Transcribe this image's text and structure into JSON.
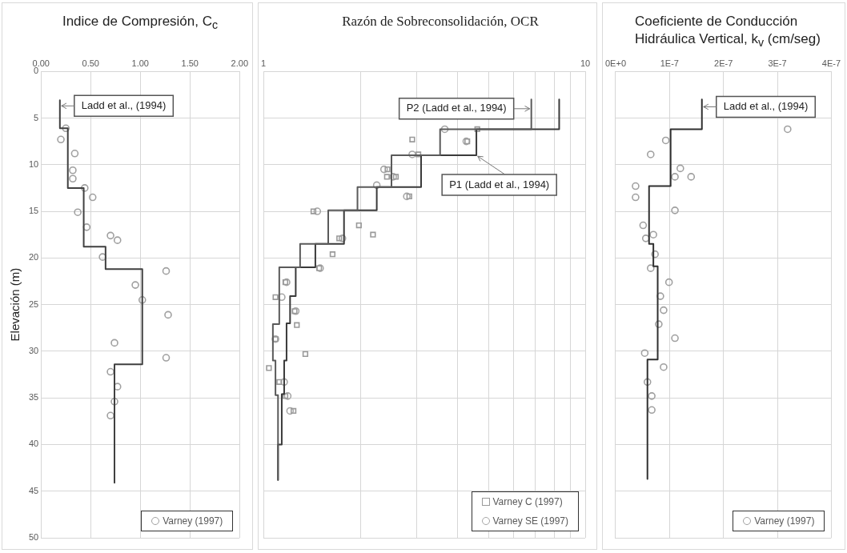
{
  "chart_data": [
    {
      "type": "line",
      "title": "Indice de Compresión, C$_{c}$",
      "ylabel": "Elevación (m)",
      "xlim": [
        0,
        2
      ],
      "xticks": [
        {
          "value": 0,
          "label": "0.00"
        },
        {
          "value": 0.5,
          "label": "0.50"
        },
        {
          "value": 1,
          "label": "1.00"
        },
        {
          "value": 1.5,
          "label": "1.50"
        },
        {
          "value": 2,
          "label": "2.00"
        }
      ],
      "ylim": [
        50,
        0
      ],
      "yticks": [
        0,
        5,
        10,
        15,
        20,
        25,
        30,
        35,
        40,
        45,
        50
      ],
      "grid": true,
      "legend": "bottom right",
      "series": [
        {
          "type": "line",
          "marker": "none",
          "color": "#404040",
          "x": [
            0.19,
            0.19,
            0.27,
            0.27,
            0.43,
            0.43,
            0.65,
            0.65,
            1.02,
            1.02,
            0.74,
            0.74
          ],
          "values": [
            3.1,
            6.1,
            6.1,
            12.5,
            12.5,
            18.8,
            18.8,
            21.2,
            21.2,
            31.4,
            31.4,
            44.1
          ]
        },
        {
          "type": "scatter",
          "marker": "circle",
          "name": "Varney (1997)",
          "color": "#a0a0a0",
          "x": [
            0.25,
            0.2,
            0.34,
            0.32,
            0.32,
            0.44,
            0.52,
            0.37,
            0.46,
            0.7,
            0.77,
            0.62,
            1.26,
            0.95,
            1.02,
            1.28,
            0.74,
            1.26,
            0.7,
            0.77,
            0.74,
            0.7
          ],
          "values": [
            6.1,
            7.3,
            8.8,
            10.6,
            11.5,
            12.5,
            13.5,
            15.1,
            16.7,
            17.6,
            18.1,
            19.9,
            21.4,
            22.9,
            24.5,
            26.1,
            29.1,
            30.7,
            32.2,
            33.8,
            35.4,
            36.9
          ]
        }
      ],
      "annotations": [
        {
          "text": "Ladd et al., (1994)",
          "x": 0.19,
          "y": 3.7
        }
      ]
    },
    {
      "type": "line",
      "title": "Razón de Sobreconsolidación, OCR",
      "log": "x",
      "xlim": [
        1,
        10
      ],
      "xticks": [
        1,
        {
          "value": 2,
          "label": null
        },
        {
          "value": 3,
          "label": null
        },
        {
          "value": 4,
          "label": null
        },
        {
          "value": 5,
          "label": null
        },
        {
          "value": 6,
          "label": null
        },
        {
          "value": 7,
          "label": null
        },
        {
          "value": 8,
          "label": null
        },
        {
          "value": 9,
          "label": null
        },
        10
      ],
      "ylim": [
        50,
        0
      ],
      "yticks": [
        0,
        5,
        10,
        15,
        20,
        25,
        30,
        35,
        40,
        45,
        50
      ],
      "tick_labels": "x",
      "grid": true,
      "legend": "bottom right",
      "series": [
        {
          "type": "line",
          "marker": "none",
          "color": "#5a5a5a",
          "x": [
            6.8,
            6.8,
            3.54,
            3.54,
            2.5,
            2.5,
            1.96,
            1.96,
            1.59,
            1.59,
            1.3,
            1.3,
            1.12,
            1.12,
            1.07,
            1.07,
            1.09,
            1.09,
            1.11,
            1.11
          ],
          "values": [
            3.0,
            6.2,
            6.2,
            9.0,
            9.0,
            12.4,
            12.4,
            14.9,
            14.9,
            18.5,
            18.5,
            21.0,
            21.0,
            27.1,
            27.1,
            31.0,
            31.0,
            34.7,
            34.7,
            43.8
          ]
        },
        {
          "type": "line",
          "marker": "none",
          "color": "#3a3a3a",
          "x": [
            8.3,
            8.3,
            4.59,
            4.59,
            3.09,
            3.09,
            2.25,
            2.25,
            1.78,
            1.78,
            1.45,
            1.45,
            1.26,
            1.26,
            1.21,
            1.21,
            1.18,
            1.18,
            1.16,
            1.16,
            1.14,
            1.14,
            1.11,
            1.11
          ],
          "values": [
            3.0,
            6.2,
            6.2,
            9.0,
            9.0,
            12.4,
            12.4,
            14.9,
            14.9,
            18.5,
            18.5,
            21.0,
            21.0,
            24.1,
            24.1,
            27.0,
            27.0,
            31.0,
            31.0,
            34.6,
            34.6,
            40.0,
            40.0,
            43.8
          ]
        },
        {
          "type": "scatter",
          "marker": "square",
          "name": "Varney C (1997)",
          "color": "#9a9a9a",
          "x": [
            4.62,
            2.9,
            4.3,
            3.03,
            2.43,
            2.42,
            2.58,
            2.84,
            1.43,
            1.98,
            2.19,
            1.72,
            1.64,
            1.49,
            1.17,
            1.09,
            1.25,
            1.27,
            1.09,
            1.35,
            1.04,
            1.12,
            1.17,
            1.24
          ],
          "values": [
            6.2,
            7.3,
            7.5,
            8.9,
            10.5,
            11.3,
            11.3,
            13.4,
            15.0,
            16.5,
            17.5,
            17.9,
            19.6,
            21.1,
            22.6,
            24.2,
            25.7,
            27.2,
            28.7,
            30.3,
            31.8,
            33.3,
            34.8,
            36.4
          ]
        },
        {
          "type": "scatter",
          "marker": "circle",
          "name": "Varney SE (1997)",
          "color": "#a6a6a6",
          "x": [
            3.66,
            4.27,
            2.9,
            2.37,
            2.53,
            2.25,
            2.79,
            1.47,
            1.76,
            1.5,
            1.18,
            1.14,
            1.26,
            1.09,
            1.16,
            1.19,
            1.21
          ],
          "values": [
            6.2,
            7.5,
            8.9,
            10.5,
            11.3,
            12.2,
            13.4,
            15.0,
            17.9,
            21.1,
            22.6,
            24.2,
            25.7,
            28.7,
            33.3,
            34.8,
            36.4
          ]
        }
      ],
      "annotations": [
        {
          "text": "P2 (Ladd et al., 1994)",
          "x": 6.8,
          "y": 4.0
        },
        {
          "text": "P1 (Ladd et al., 1994)",
          "x": 4.59,
          "y": 9.0
        }
      ]
    },
    {
      "type": "line",
      "title": "Coeficiente de Conducción Hidráulica Vertical, k$_{v}$ (cm/seg)",
      "xlim": [
        0,
        4e-07
      ],
      "xticks": [
        {
          "value": 0,
          "label": "0E+0"
        },
        {
          "value": 1e-07,
          "label": "1E-7"
        },
        {
          "value": 2e-07,
          "label": "2E-7"
        },
        {
          "value": 3e-07,
          "label": "3E-7"
        },
        {
          "value": 4e-07,
          "label": "4E-7"
        }
      ],
      "ylim": [
        50,
        0
      ],
      "yticks": [
        0,
        5,
        10,
        15,
        20,
        25,
        30,
        35,
        40,
        45,
        50
      ],
      "tick_labels": "x",
      "grid": true,
      "legend": "bottom right",
      "series": [
        {
          "type": "line",
          "marker": "none",
          "color": "#303030",
          "x": [
            1.6e-07,
            1.6e-07,
            1.02e-07,
            1.02e-07,
            6.2e-08,
            6.2e-08,
            7e-08,
            7e-08,
            7.8e-08,
            7.8e-08,
            5.9e-08,
            5.9e-08
          ],
          "values": [
            3.0,
            6.2,
            6.2,
            12.3,
            12.3,
            18.5,
            18.5,
            20.9,
            20.9,
            30.9,
            30.9,
            43.7
          ]
        },
        {
          "type": "scatter",
          "marker": "circle",
          "name": "Varney (1997)",
          "color": "#a0a0a0",
          "x": [
            3.19e-07,
            9.3e-08,
            6.5e-08,
            1.2e-07,
            1.1e-07,
            1.4e-07,
            3.7e-08,
            3.7e-08,
            1.1e-07,
            5.1e-08,
            7e-08,
            5.6e-08,
            7.3e-08,
            6.5e-08,
            9.9e-08,
            8.3e-08,
            8.9e-08,
            8e-08,
            1.1e-07,
            5.4e-08,
            8.9e-08,
            5.9e-08,
            6.7e-08,
            6.7e-08
          ],
          "values": [
            6.2,
            7.4,
            8.9,
            10.4,
            11.3,
            11.3,
            12.3,
            13.5,
            14.9,
            16.5,
            17.5,
            17.9,
            19.6,
            21.1,
            22.6,
            24.1,
            25.6,
            27.1,
            28.6,
            30.2,
            31.7,
            33.3,
            34.8,
            36.3
          ]
        }
      ],
      "annotations": [
        {
          "text": "Ladd et al., (1994)",
          "x": 1.6e-07,
          "y": 3.8
        }
      ]
    }
  ]
}
